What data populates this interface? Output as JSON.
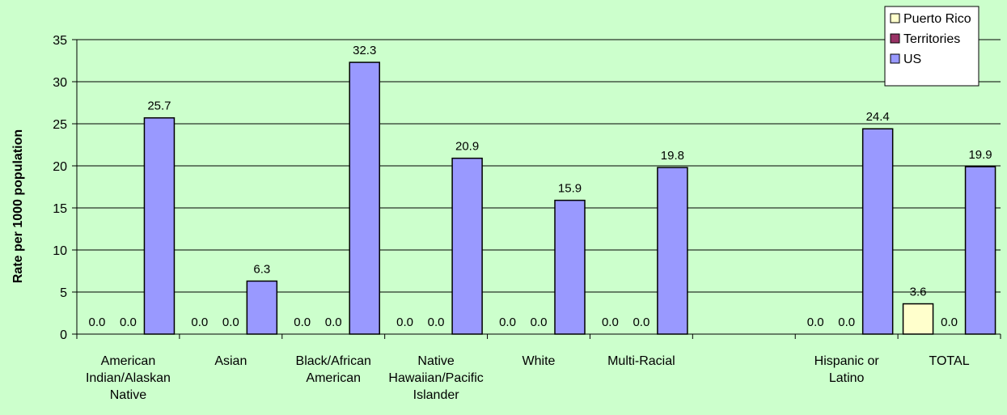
{
  "chart_data": {
    "type": "bar",
    "ylabel": "Rate per 1000 population",
    "xlabel": "",
    "ylim": [
      0,
      35
    ],
    "ytick_step": 5,
    "ytick_labels": [
      "0",
      "5",
      "10",
      "15",
      "20",
      "25",
      "30",
      "35"
    ],
    "grid": true,
    "legend_position": "top-right",
    "categories": [
      "American Indian/Alaskan Native",
      "Asian",
      "Black/African American",
      "Native Hawaiian/Pacific Islander",
      "White",
      "Multi-Racial",
      "",
      "Hispanic or Latino",
      "TOTAL"
    ],
    "category_label_lines": [
      [
        "American",
        "Indian/Alaskan",
        "Native"
      ],
      [
        "Asian"
      ],
      [
        "Black/African",
        "American"
      ],
      [
        "Native",
        "Hawaiian/Pacific",
        "Islander"
      ],
      [
        "White"
      ],
      [
        "Multi-Racial"
      ],
      [],
      [
        "Hispanic or",
        "Latino"
      ],
      [
        "TOTAL"
      ]
    ],
    "series": [
      {
        "name": "Puerto Rico",
        "color": "#ffffcc",
        "values": [
          0.0,
          0.0,
          0.0,
          0.0,
          0.0,
          0.0,
          null,
          0.0,
          3.6
        ],
        "labels": [
          "0.0",
          "0.0",
          "0.0",
          "0.0",
          "0.0",
          "0.0",
          "",
          "0.0",
          "3.6"
        ]
      },
      {
        "name": "Territories",
        "color": "#993366",
        "values": [
          0.0,
          0.0,
          0.0,
          0.0,
          0.0,
          0.0,
          null,
          0.0,
          0.0
        ],
        "labels": [
          "0.0",
          "0.0",
          "0.0",
          "0.0",
          "0.0",
          "0.0",
          "",
          "0.0",
          "0.0"
        ]
      },
      {
        "name": "US",
        "color": "#9999ff",
        "values": [
          25.7,
          6.3,
          32.3,
          20.9,
          15.9,
          19.8,
          null,
          24.4,
          19.9
        ],
        "labels": [
          "25.7",
          "6.3",
          "32.3",
          "20.9",
          "15.9",
          "19.8",
          "",
          "24.4",
          "19.9"
        ]
      }
    ]
  }
}
